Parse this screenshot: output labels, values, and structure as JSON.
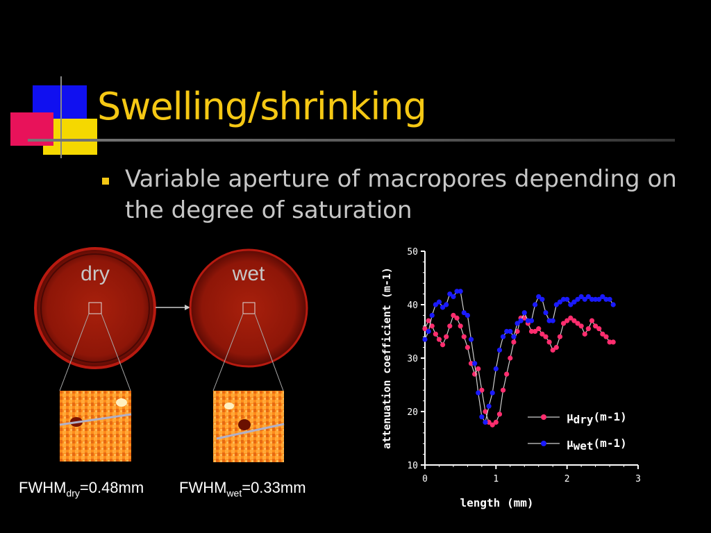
{
  "slide": {
    "title": "Swelling/shrinking",
    "bullet": "Variable aperture of macropores depending on the degree of saturation"
  },
  "images": {
    "dry_label": "dry",
    "wet_label": "wet",
    "fwhm_dry": {
      "prefix": "FWHM",
      "sub": "dry",
      "value": "=0.48mm"
    },
    "fwhm_wet": {
      "prefix": "FWHM",
      "sub": "wet",
      "value": "=0.33mm"
    }
  },
  "colors": {
    "title": "#f5c814",
    "dry_series": "#ff2d6e",
    "wet_series": "#1a1aff",
    "axis": "#ffffff"
  },
  "chart_data": {
    "type": "line",
    "xlabel": "length (mm)",
    "ylabel": "attenuation coefficient (m-1)",
    "xlim": [
      0,
      3
    ],
    "ylim": [
      10,
      50
    ],
    "xticks": [
      0,
      1,
      2,
      3
    ],
    "yticks": [
      10,
      20,
      30,
      40,
      50
    ],
    "legend_position": "bottom-right",
    "series": [
      {
        "name": "μdry(m-1)",
        "label_main": "μ",
        "label_sub": "dry",
        "label_unit": "(m-1)",
        "color": "#ff2d6e",
        "x": [
          0.0,
          0.05,
          0.1,
          0.15,
          0.2,
          0.25,
          0.3,
          0.35,
          0.4,
          0.45,
          0.5,
          0.55,
          0.6,
          0.65,
          0.7,
          0.75,
          0.8,
          0.85,
          0.9,
          0.95,
          1.0,
          1.05,
          1.1,
          1.15,
          1.2,
          1.25,
          1.3,
          1.35,
          1.4,
          1.45,
          1.5,
          1.55,
          1.6,
          1.65,
          1.7,
          1.75,
          1.8,
          1.85,
          1.9,
          1.95,
          2.0,
          2.05,
          2.1,
          2.15,
          2.2,
          2.25,
          2.3,
          2.35,
          2.4,
          2.45,
          2.5,
          2.55,
          2.6,
          2.65
        ],
        "y": [
          35.5,
          37,
          36,
          34.5,
          33.5,
          32.5,
          34,
          36,
          38,
          37.5,
          36,
          34,
          32,
          29,
          27,
          28,
          24,
          20,
          18,
          17.5,
          18,
          19.5,
          24,
          27,
          30,
          33,
          35,
          37.5,
          37.5,
          36.5,
          35,
          35,
          35.5,
          34.5,
          34,
          33,
          31.5,
          32,
          34,
          36.5,
          37,
          37.5,
          37,
          36.5,
          36,
          34.5,
          35.5,
          37,
          36,
          35.5,
          34.5,
          34,
          33,
          33
        ]
      },
      {
        "name": "μwet(m-1)",
        "label_main": "μ",
        "label_sub": "wet",
        "label_unit": "(m-1)",
        "color": "#1a1aff",
        "x": [
          0.0,
          0.05,
          0.1,
          0.15,
          0.2,
          0.25,
          0.3,
          0.35,
          0.4,
          0.45,
          0.5,
          0.55,
          0.6,
          0.65,
          0.7,
          0.75,
          0.8,
          0.85,
          0.9,
          0.95,
          1.0,
          1.05,
          1.1,
          1.15,
          1.2,
          1.25,
          1.3,
          1.35,
          1.4,
          1.45,
          1.5,
          1.55,
          1.6,
          1.65,
          1.7,
          1.75,
          1.8,
          1.85,
          1.9,
          1.95,
          2.0,
          2.05,
          2.1,
          2.15,
          2.2,
          2.25,
          2.3,
          2.35,
          2.4,
          2.45,
          2.5,
          2.55,
          2.6,
          2.65
        ],
        "y": [
          33.5,
          35,
          38,
          40,
          40.5,
          39.5,
          40,
          42,
          41.5,
          42.5,
          42.5,
          38.5,
          38,
          33.5,
          29,
          23.5,
          19,
          18,
          21,
          23.5,
          28,
          31.5,
          34,
          35,
          35,
          34,
          36.5,
          37,
          38.5,
          37,
          37,
          40,
          41.5,
          41,
          38.5,
          37,
          37,
          40,
          40.5,
          41,
          41,
          40,
          40.5,
          41,
          41.5,
          41,
          41.5,
          41,
          41,
          41,
          41.5,
          41,
          41,
          40
        ]
      }
    ]
  }
}
